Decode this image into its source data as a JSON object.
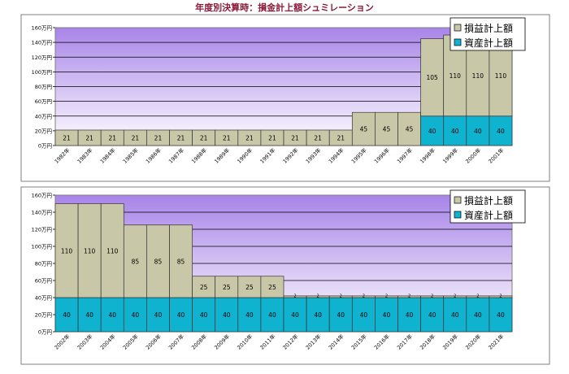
{
  "title": "年度別決算時：損金計上額シュミレーション",
  "colors": {
    "asset": "#0fb3cf",
    "loss": "#c8c8a8",
    "plot_top": "#a884e8",
    "plot_bottom": "#ffffff",
    "frame": "#7f7f7f",
    "title": "#8b1a3a"
  },
  "chart_data": [
    {
      "type": "bar",
      "stacked": true,
      "ylim": [
        0,
        160
      ],
      "yticks": [
        "0万円",
        "20万円",
        "40万円",
        "60万円",
        "80万円",
        "100万円",
        "120万円",
        "140万円",
        "160万円"
      ],
      "grid": true,
      "legend": "top-right",
      "categories": [
        "1982年",
        "1983年",
        "1984年",
        "1985年",
        "1986年",
        "1987年",
        "1988年",
        "1989年",
        "1990年",
        "1991年",
        "1992年",
        "1993年",
        "1994年",
        "1995年",
        "1996年",
        "1997年",
        "1998年",
        "1999年",
        "2000年",
        "2001年"
      ],
      "series": [
        {
          "name": "資産計上額",
          "values": [
            0,
            0,
            0,
            0,
            0,
            0,
            0,
            0,
            0,
            0,
            0,
            0,
            0,
            0,
            0,
            0,
            40,
            40,
            40,
            40
          ]
        },
        {
          "name": "損益計上額",
          "values": [
            21,
            21,
            21,
            21,
            21,
            21,
            21,
            21,
            21,
            21,
            21,
            21,
            21,
            45,
            45,
            45,
            105,
            110,
            110,
            110
          ]
        }
      ]
    },
    {
      "type": "bar",
      "stacked": true,
      "ylim": [
        0,
        160
      ],
      "yticks": [
        "0万円",
        "20万円",
        "40万円",
        "60万円",
        "80万円",
        "100万円",
        "120万円",
        "140万円",
        "160万円"
      ],
      "grid": true,
      "legend": "top-right",
      "categories": [
        "2002年",
        "2003年",
        "2004年",
        "2005年",
        "2006年",
        "2007年",
        "2008年",
        "2009年",
        "2010年",
        "2011年",
        "2012年",
        "2013年",
        "2014年",
        "2015年",
        "2016年",
        "2017年",
        "2018年",
        "2019年",
        "2020年",
        "2021年"
      ],
      "series": [
        {
          "name": "資産計上額",
          "values": [
            40,
            40,
            40,
            40,
            40,
            40,
            40,
            40,
            40,
            40,
            40,
            40,
            40,
            40,
            40,
            40,
            40,
            40,
            40,
            40
          ]
        },
        {
          "name": "損益計上額",
          "values": [
            110,
            110,
            110,
            85,
            85,
            85,
            25,
            25,
            25,
            25,
            2,
            2,
            2,
            2,
            2,
            2,
            2,
            2,
            2,
            2
          ]
        }
      ]
    }
  ]
}
